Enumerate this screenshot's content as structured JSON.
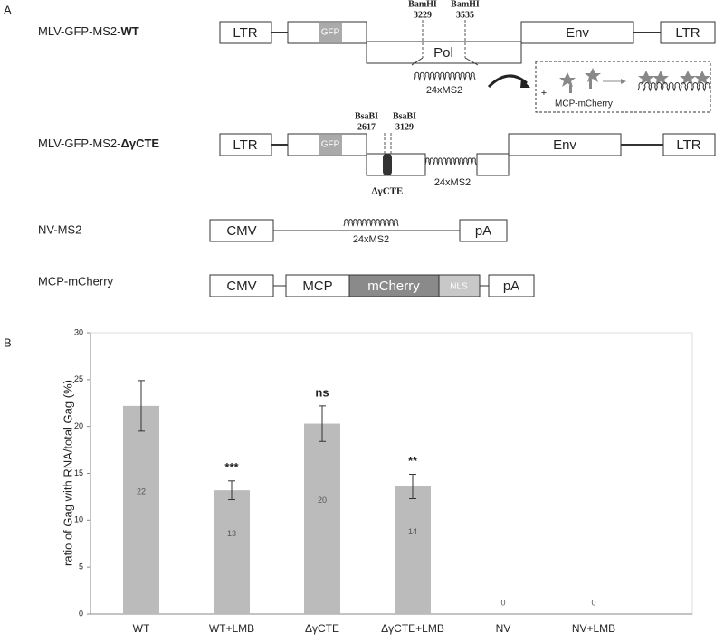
{
  "panel_a": {
    "label": "A",
    "constructs": [
      {
        "name": "MLV-GFP-MS2-",
        "name_bold": "WT",
        "elements": [
          "LTR",
          "GFP",
          "Pol",
          "Env",
          "LTR"
        ],
        "sites": [
          {
            "enzyme": "BamHI",
            "position": "3229"
          },
          {
            "enzyme": "BamHI",
            "position": "3535"
          }
        ],
        "repeat": "24xMS2",
        "inset": {
          "sign": "+",
          "label": "MCP-mCherry"
        }
      },
      {
        "name": "MLV-GFP-MS2-",
        "name_bold": "ΔγCTE",
        "elements": [
          "LTR",
          "GFP",
          "Env",
          "LTR"
        ],
        "sites": [
          {
            "enzyme": "BsaBI",
            "position": "2617"
          },
          {
            "enzyme": "BsaBI",
            "position": "3129"
          }
        ],
        "deletion": "ΔγCTE",
        "repeat": "24xMS2"
      },
      {
        "name": "NV-MS2",
        "elements": [
          "CMV",
          "pA"
        ],
        "repeat": "24xMS2"
      },
      {
        "name": "MCP-mCherry",
        "elements": [
          "CMV",
          "MCP",
          "mCherry",
          "NLS",
          "pA"
        ]
      }
    ]
  },
  "chart_data": {
    "type": "bar",
    "panel_label": "B",
    "y_label": "ratio of Gag with RNA/total Gag (%)",
    "categories": [
      "WT",
      "WT+LMB",
      "ΔγCTE",
      "ΔγCTE+LMB",
      "NV",
      "NV+LMB"
    ],
    "values": [
      22.2,
      13.2,
      20.3,
      13.6,
      0,
      0
    ],
    "value_labels": [
      "22",
      "13",
      "20",
      "14",
      "0",
      "0"
    ],
    "errors": [
      2.7,
      1.0,
      1.9,
      1.3,
      null,
      null
    ],
    "significance": [
      null,
      "***",
      "ns",
      "**",
      null,
      null
    ],
    "color": "#bbbbbb",
    "ylim": [
      0,
      30
    ],
    "yticks": [
      0,
      5,
      10,
      15,
      20,
      25,
      30
    ],
    "grid": false
  }
}
